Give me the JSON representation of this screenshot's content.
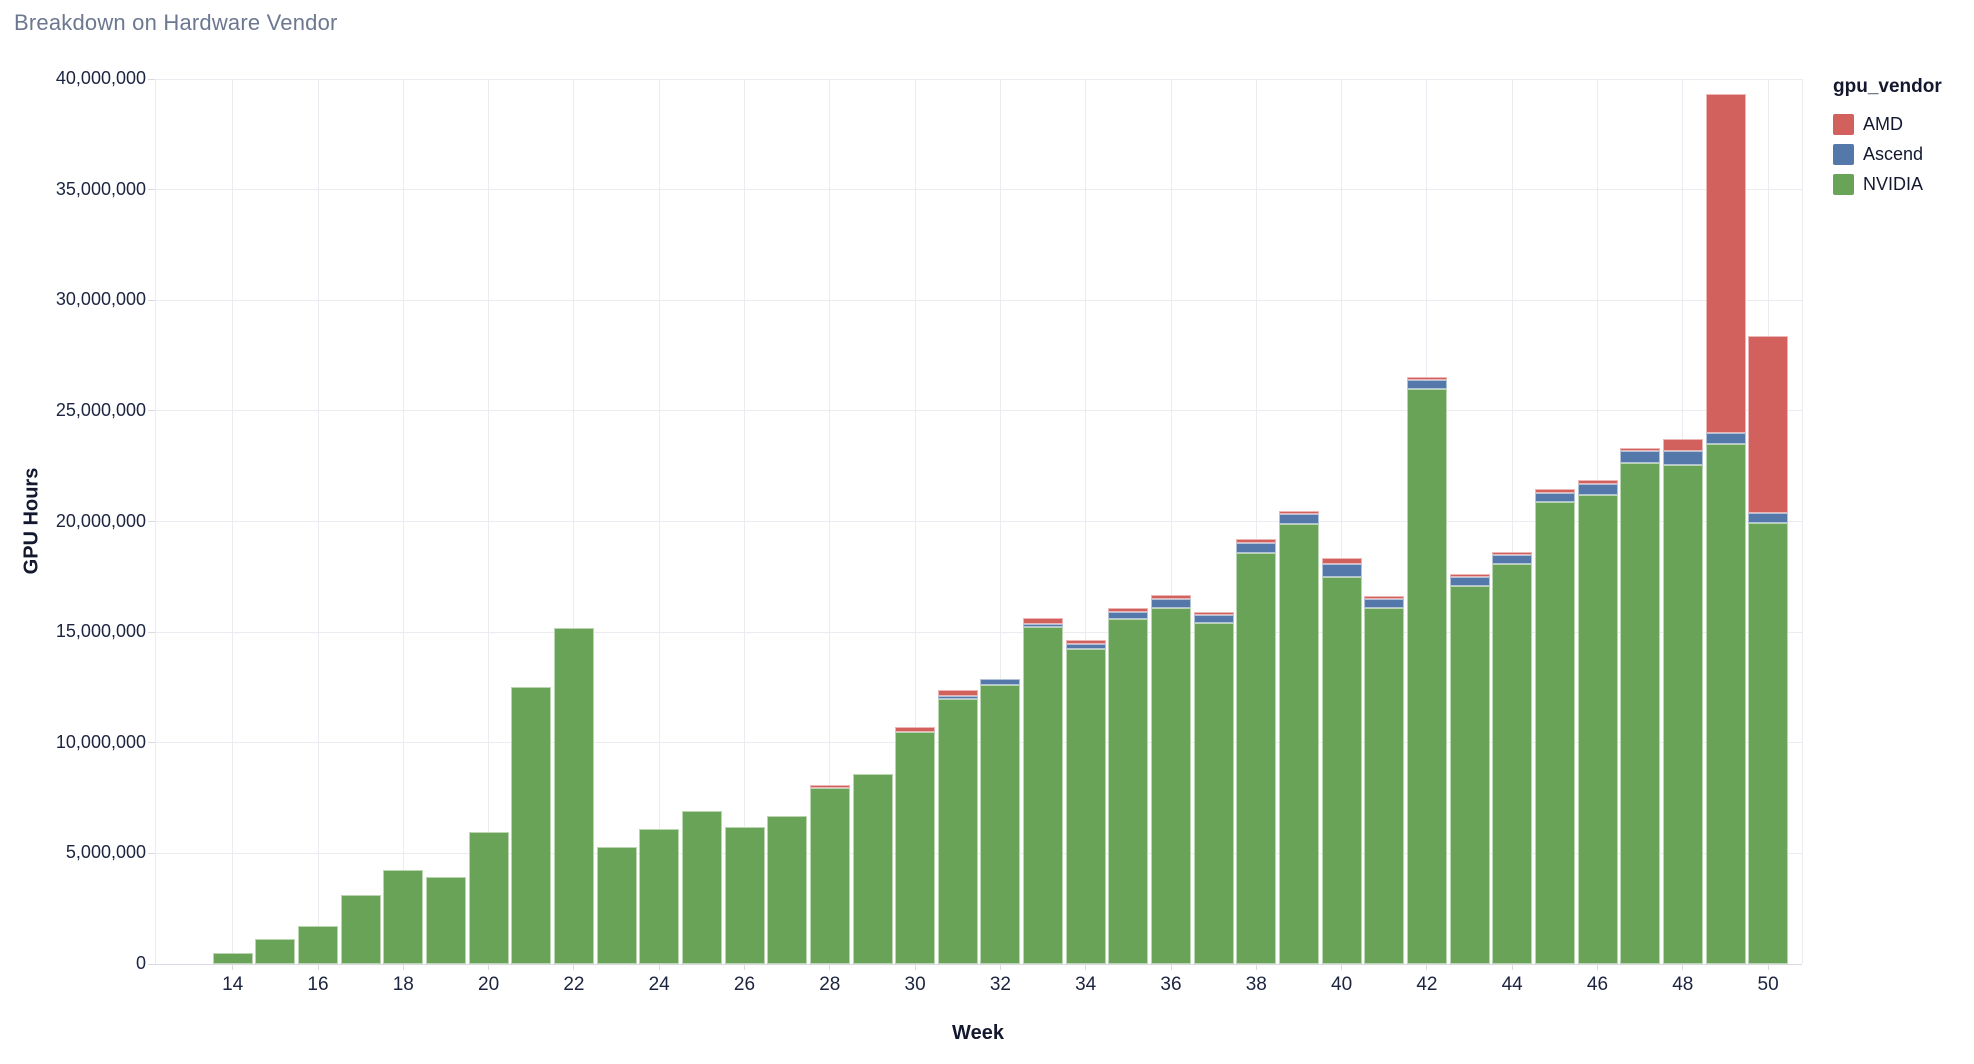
{
  "title": "Breakdown on Hardware Vendor",
  "axes": {
    "x_label": "Week",
    "y_label": "GPU Hours",
    "y_tick_values": [
      0,
      5000000,
      10000000,
      15000000,
      20000000,
      25000000,
      30000000,
      35000000,
      40000000
    ],
    "y_tick_labels": [
      "0",
      "5,000,000",
      "10,000,000",
      "15,000,000",
      "20,000,000",
      "25,000,000",
      "30,000,000",
      "35,000,000",
      "40,000,000"
    ],
    "x_tick_values": [
      14,
      16,
      18,
      20,
      22,
      24,
      26,
      28,
      30,
      32,
      34,
      36,
      38,
      40,
      42,
      44,
      46,
      48,
      50
    ],
    "x_tick_labels": [
      "14",
      "16",
      "18",
      "20",
      "22",
      "24",
      "26",
      "28",
      "30",
      "32",
      "34",
      "36",
      "38",
      "40",
      "42",
      "44",
      "46",
      "48",
      "50"
    ]
  },
  "legend": {
    "title": "gpu_vendor",
    "items": [
      {
        "label": "AMD",
        "color": "#D2615E"
      },
      {
        "label": "Ascend",
        "color": "#5578AB"
      },
      {
        "label": "NVIDIA",
        "color": "#69A357"
      }
    ]
  },
  "chart_data": {
    "type": "bar",
    "stacked": true,
    "title": "Breakdown on Hardware Vendor",
    "xlabel": "Week",
    "ylabel": "GPU Hours",
    "ylim": [
      0,
      40000000
    ],
    "grid": true,
    "legend_position": "top-right",
    "stack_order_bottom_to_top": [
      "NVIDIA",
      "Ascend",
      "AMD"
    ],
    "x": [
      14,
      15,
      16,
      17,
      18,
      19,
      20,
      21,
      22,
      23,
      24,
      25,
      26,
      27,
      28,
      29,
      30,
      31,
      32,
      33,
      34,
      35,
      36,
      37,
      38,
      39,
      40,
      41,
      42,
      43,
      44,
      45,
      46,
      47,
      48,
      49,
      50
    ],
    "series": [
      {
        "name": "NVIDIA",
        "color": "#69A357",
        "values": [
          500000,
          1150000,
          1700000,
          3100000,
          4250000,
          3950000,
          5950000,
          12500000,
          15200000,
          5300000,
          6100000,
          6900000,
          6200000,
          6700000,
          7950000,
          8600000,
          10500000,
          12000000,
          12600000,
          15250000,
          14250000,
          15600000,
          16100000,
          15400000,
          18600000,
          19900000,
          17500000,
          16100000,
          26000000,
          17100000,
          18100000,
          20900000,
          21200000,
          22650000,
          22550000,
          23500000,
          19950000
        ]
      },
      {
        "name": "Ascend",
        "color": "#5578AB",
        "values": [
          0,
          0,
          0,
          0,
          0,
          0,
          0,
          0,
          0,
          0,
          0,
          0,
          0,
          0,
          0,
          0,
          0,
          100000,
          270000,
          120000,
          200000,
          300000,
          380000,
          370000,
          450000,
          420000,
          600000,
          400000,
          410000,
          400000,
          380000,
          400000,
          500000,
          520000,
          650000,
          520000,
          420000
        ]
      },
      {
        "name": "AMD",
        "color": "#D2615E",
        "values": [
          0,
          0,
          0,
          0,
          0,
          0,
          0,
          0,
          0,
          0,
          0,
          0,
          0,
          0,
          120000,
          0,
          200000,
          300000,
          0,
          250000,
          200000,
          200000,
          200000,
          150000,
          150000,
          150000,
          230000,
          150000,
          110000,
          150000,
          150000,
          150000,
          200000,
          160000,
          550000,
          15300000,
          8000000
        ]
      }
    ]
  },
  "colors": {
    "background": "#ffffff",
    "grid": "#ebebf2",
    "axis": "#d9dae3",
    "tick_label": "#1c2440",
    "axis_title": "#13182f",
    "chart_title": "#6b7890"
  }
}
